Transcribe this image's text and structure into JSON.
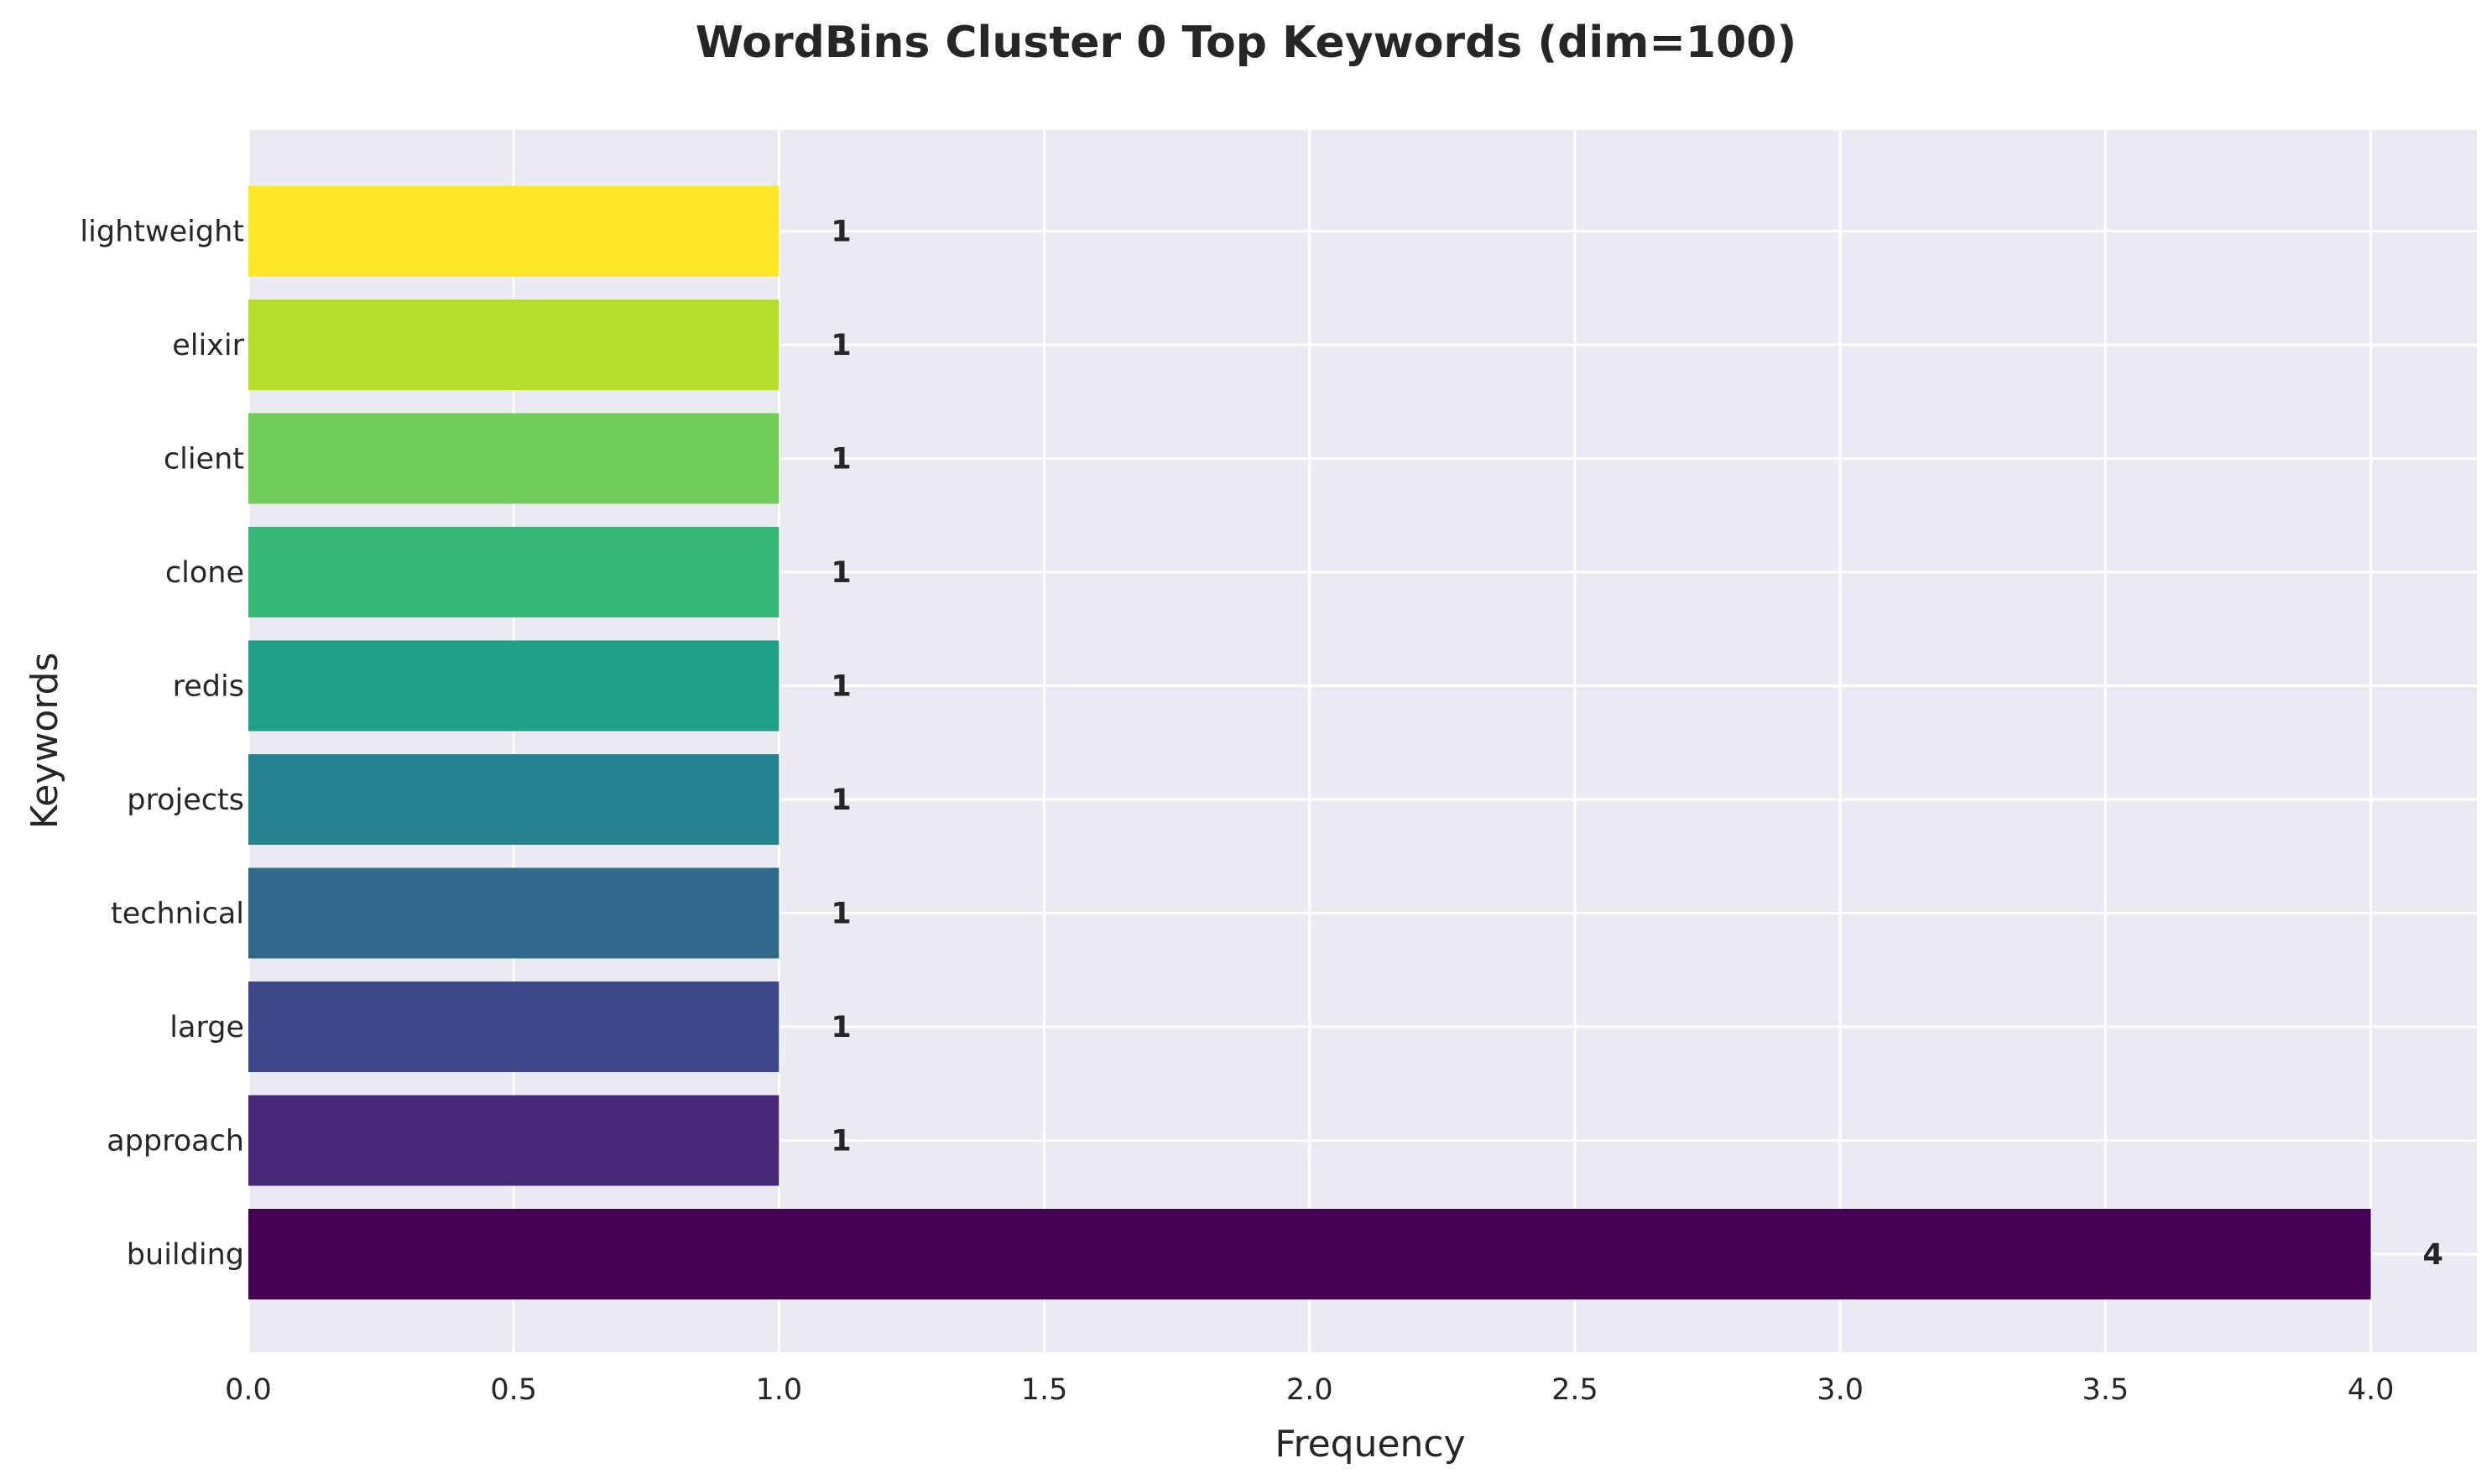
{
  "chart_data": {
    "type": "bar",
    "orientation": "horizontal",
    "title": "WordBins Cluster 0 Top Keywords (dim=100)",
    "xlabel": "Frequency",
    "ylabel": "Keywords",
    "categories": [
      "building",
      "approach",
      "large",
      "technical",
      "projects",
      "redis",
      "clone",
      "client",
      "elixir",
      "lightweight"
    ],
    "values": [
      4,
      1,
      1,
      1,
      1,
      1,
      1,
      1,
      1,
      1
    ],
    "data_labels": [
      "4",
      "1",
      "1",
      "1",
      "1",
      "1",
      "1",
      "1",
      "1",
      "1"
    ],
    "colors": [
      "#440154",
      "#482878",
      "#3e4989",
      "#31688e",
      "#26828e",
      "#1f9e89",
      "#35b779",
      "#6ece58",
      "#b5de2b",
      "#fde725"
    ],
    "xlim": [
      0,
      4.2
    ],
    "xticks": [
      0,
      0.5,
      1,
      1.5,
      2,
      2.5,
      3,
      3.5,
      4
    ],
    "xtick_labels": [
      "0.0",
      "0.5",
      "1.0",
      "1.5",
      "2.0",
      "2.5",
      "3.0",
      "3.5",
      "4.0"
    ],
    "grid": true,
    "background_color": "#eaeaf2",
    "grid_color": "#ffffff"
  }
}
